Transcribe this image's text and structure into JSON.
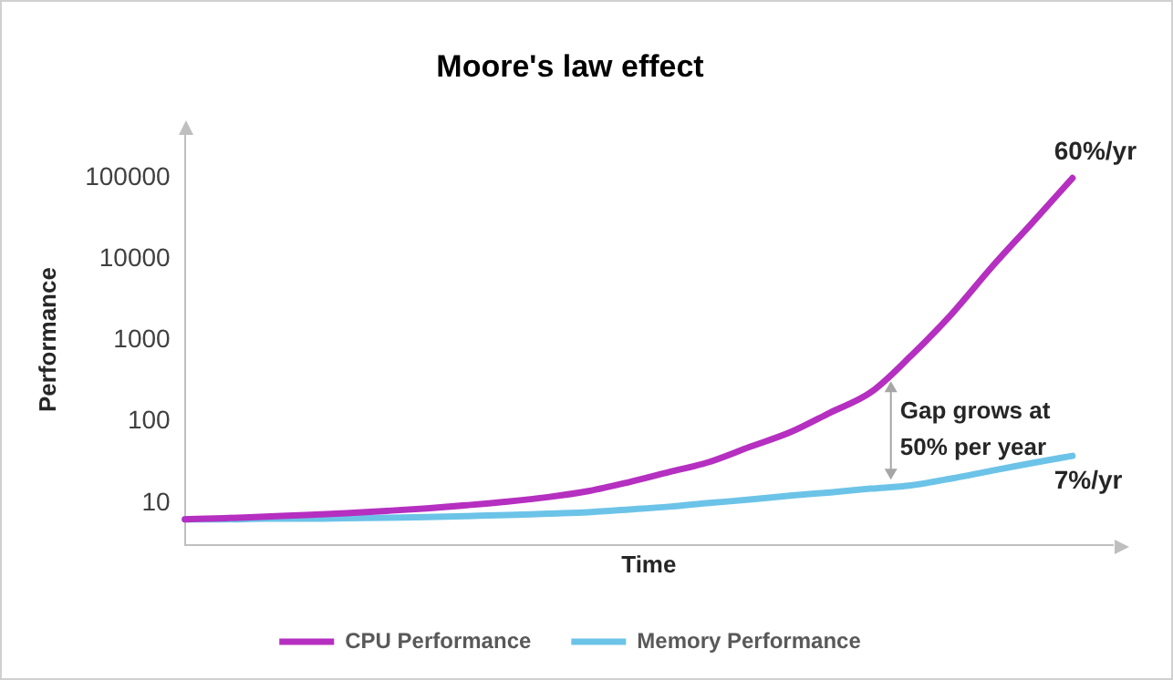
{
  "chart_data": {
    "type": "line",
    "title": "Moore's law effect",
    "xlabel": "Time",
    "ylabel": "Performance",
    "categories": [
      null,
      null,
      null,
      null,
      null,
      null,
      null,
      null,
      null,
      null,
      null,
      null,
      null,
      null,
      null,
      null,
      null,
      null,
      null,
      null,
      null,
      null,
      null,
      null
    ],
    "series": [
      {
        "name": "CPU Performance",
        "color": "#b52fc0",
        "values": [
          6.3,
          6.5,
          6.8,
          7.1,
          7.5,
          8,
          8.6,
          9.4,
          10.4,
          11.8,
          14,
          18,
          24,
          32,
          49,
          74,
          130,
          230,
          650,
          2100,
          8000,
          28000,
          100000,
          null
        ]
      },
      {
        "name": "Memory Performance",
        "color": "#6cc3e8",
        "values": [
          6.3,
          6.3,
          6.4,
          6.4,
          6.5,
          6.6,
          6.7,
          6.9,
          7.1,
          7.4,
          7.7,
          8.3,
          9,
          10,
          11,
          12.3,
          13.5,
          15,
          16.5,
          20,
          25,
          31,
          38,
          null
        ]
      }
    ],
    "log": "y",
    "ylim": [
      3,
      350000
    ],
    "yticks": [
      10,
      100,
      1000,
      10000,
      100000
    ],
    "grid": false,
    "legend": "bottom",
    "marker": "none",
    "line_style": "solid",
    "annotations": [
      "60%/yr",
      "7%/yr",
      "Gap grows at 50% per year"
    ]
  }
}
